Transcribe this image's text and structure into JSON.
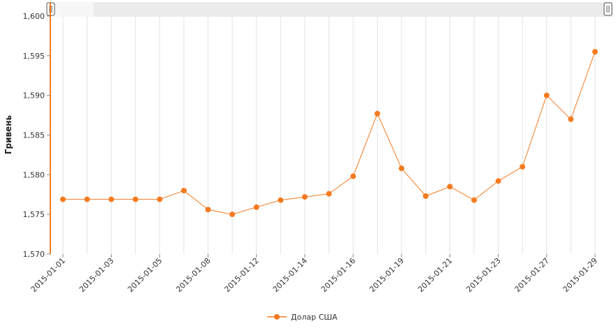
{
  "chart_data": {
    "type": "line",
    "title": "",
    "xlabel": "",
    "ylabel": "Гривень",
    "ylim": [
      1.57,
      1.6
    ],
    "y_ticks": [
      "1,570",
      "1,575",
      "1,580",
      "1,585",
      "1,590",
      "1,595",
      "1,600"
    ],
    "x_tick_labels": [
      "2015-01-01",
      "2015-01-03",
      "2015-01-05",
      "2015-01-08",
      "2015-01-12",
      "2015-01-14",
      "2015-01-16",
      "2015-01-19",
      "2015-01-21",
      "2015-01-23",
      "2015-01-27",
      "2015-01-29"
    ],
    "grid": true,
    "legend_position": "bottom-center",
    "colors": {
      "series": "#F47B20",
      "grid": "#E3E3E3",
      "scrollbar": "#EBEBEB"
    },
    "series": [
      {
        "name": "Долар США",
        "values": [
          1.5769,
          1.5769,
          1.5769,
          1.5769,
          1.5769,
          1.578,
          1.5756,
          1.575,
          1.5759,
          1.5768,
          1.5772,
          1.5776,
          1.5798,
          1.5877,
          1.5808,
          1.5773,
          1.5785,
          1.5768,
          1.5792,
          1.581,
          1.59,
          1.587,
          1.5955
        ]
      }
    ]
  }
}
